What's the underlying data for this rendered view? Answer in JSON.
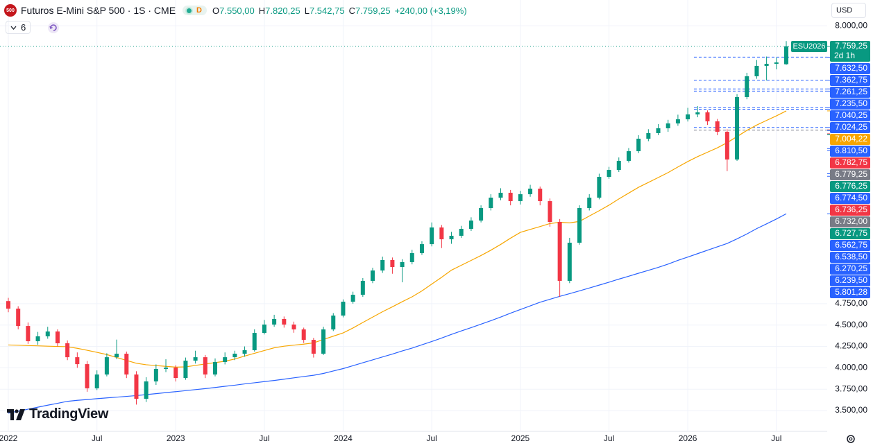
{
  "header": {
    "badge": "500",
    "title": "Futuros E-Mini S&P 500 · 1S · CME",
    "status": "D",
    "ohlc": [
      {
        "key": "O",
        "value": "7.550,00"
      },
      {
        "key": "H",
        "value": "7.820,25"
      },
      {
        "key": "L",
        "value": "7.542,75"
      },
      {
        "key": "C",
        "value": "7.759,25"
      }
    ],
    "change": "+240,00 (+3,19%)",
    "indicators": "6",
    "currency": "USD",
    "logo": "TradingView"
  },
  "chart_data": {
    "type": "candlestick",
    "up_color": "#089981",
    "down_color": "#f23645",
    "grid": true,
    "categories": [
      "2022",
      null,
      null,
      null,
      null,
      null,
      null,
      null,
      null,
      "Jul",
      null,
      null,
      null,
      null,
      null,
      null,
      null,
      "2023",
      null,
      null,
      null,
      null,
      null,
      null,
      null,
      null,
      "Jul",
      null,
      null,
      null,
      null,
      null,
      null,
      null,
      "2024",
      null,
      null,
      null,
      null,
      null,
      null,
      null,
      null,
      "Jul",
      null,
      null,
      null,
      null,
      null,
      null,
      null,
      null,
      "2025",
      null,
      null,
      null,
      null,
      null,
      null,
      null,
      null,
      "Jul",
      null,
      null,
      null,
      null,
      null,
      null,
      null,
      "2026",
      null,
      null,
      null,
      null,
      null,
      null,
      null,
      null,
      "Jul",
      null
    ],
    "ohlc": [
      [
        4780,
        4818,
        4650,
        4692
      ],
      [
        4692,
        4720,
        4450,
        4489
      ],
      [
        4489,
        4530,
        4280,
        4311
      ],
      [
        4311,
        4420,
        4270,
        4368
      ],
      [
        4368,
        4480,
        4340,
        4425
      ],
      [
        4425,
        4450,
        4250,
        4287
      ],
      [
        4287,
        4320,
        4090,
        4124
      ],
      [
        4124,
        4180,
        4000,
        4043
      ],
      [
        4043,
        4080,
        3720,
        3760
      ],
      [
        3760,
        3970,
        3740,
        3922
      ],
      [
        3922,
        4170,
        3900,
        4124
      ],
      [
        4124,
        4330,
        4100,
        4165
      ],
      [
        4165,
        4190,
        3880,
        3922
      ],
      [
        3922,
        3960,
        3570,
        3638
      ],
      [
        3638,
        3890,
        3600,
        3841
      ],
      [
        3841,
        4040,
        3800,
        3987
      ],
      [
        3987,
        4100,
        3950,
        4003
      ],
      [
        4003,
        4030,
        3840,
        3881
      ],
      [
        3881,
        4120,
        3860,
        4084
      ],
      [
        4084,
        4200,
        4050,
        4124
      ],
      [
        4124,
        4150,
        3880,
        3922
      ],
      [
        3922,
        4110,
        3900,
        4068
      ],
      [
        4068,
        4180,
        4040,
        4124
      ],
      [
        4124,
        4200,
        4090,
        4165
      ],
      [
        4165,
        4250,
        4130,
        4206
      ],
      [
        4206,
        4450,
        4190,
        4408
      ],
      [
        4408,
        4560,
        4390,
        4506
      ],
      [
        4506,
        4620,
        4480,
        4571
      ],
      [
        4571,
        4600,
        4470,
        4506
      ],
      [
        4506,
        4540,
        4410,
        4449
      ],
      [
        4449,
        4470,
        4290,
        4327
      ],
      [
        4327,
        4350,
        4120,
        4165
      ],
      [
        4165,
        4480,
        4150,
        4449
      ],
      [
        4449,
        4640,
        4430,
        4611
      ],
      [
        4611,
        4800,
        4590,
        4773
      ],
      [
        4773,
        4890,
        4750,
        4854
      ],
      [
        4854,
        5050,
        4830,
        5017
      ],
      [
        5017,
        5170,
        4990,
        5138
      ],
      [
        5138,
        5300,
        5110,
        5260
      ],
      [
        5260,
        5290,
        5100,
        5179
      ],
      [
        5179,
        5270,
        5000,
        5236
      ],
      [
        5236,
        5380,
        5210,
        5341
      ],
      [
        5341,
        5480,
        5320,
        5446
      ],
      [
        5446,
        5700,
        5420,
        5641
      ],
      [
        5641,
        5670,
        5400,
        5503
      ],
      [
        5503,
        5590,
        5450,
        5544
      ],
      [
        5544,
        5660,
        5520,
        5625
      ],
      [
        5625,
        5760,
        5600,
        5722
      ],
      [
        5722,
        5900,
        5700,
        5868
      ],
      [
        5868,
        6030,
        5840,
        5990
      ],
      [
        5990,
        6100,
        5960,
        6047
      ],
      [
        6047,
        6080,
        5900,
        5949
      ],
      [
        5949,
        6070,
        5910,
        6030
      ],
      [
        6030,
        6140,
        6000,
        6095
      ],
      [
        6095,
        6120,
        5900,
        5949
      ],
      [
        5949,
        5980,
        5650,
        5706
      ],
      [
        5706,
        5740,
        4830,
        5017
      ],
      [
        5017,
        5520,
        4990,
        5463
      ],
      [
        5463,
        5900,
        5440,
        5868
      ],
      [
        5868,
        6030,
        5840,
        5990
      ],
      [
        5990,
        6270,
        5970,
        6233
      ],
      [
        6233,
        6350,
        6210,
        6314
      ],
      [
        6314,
        6460,
        6290,
        6420
      ],
      [
        6420,
        6570,
        6400,
        6533
      ],
      [
        6533,
        6720,
        6510,
        6679
      ],
      [
        6679,
        6790,
        6650,
        6744
      ],
      [
        6744,
        6850,
        6720,
        6801
      ],
      [
        6801,
        6900,
        6760,
        6858
      ],
      [
        6858,
        6960,
        6830,
        6906
      ],
      [
        6906,
        7040,
        6880,
        6963
      ],
      [
        6963,
        7060,
        6930,
        6987
      ],
      [
        6987,
        7010,
        6840,
        6882
      ],
      [
        6882,
        6910,
        6720,
        6760
      ],
      [
        6760,
        6790,
        6300,
        6436
      ],
      [
        6436,
        7200,
        6420,
        7166
      ],
      [
        7166,
        7450,
        7140,
        7409
      ],
      [
        7409,
        7600,
        7380,
        7531
      ],
      [
        7531,
        7640,
        7360,
        7555
      ],
      [
        7555,
        7630,
        7490,
        7571
      ],
      [
        7550,
        7820.25,
        7542.75,
        7759.25
      ]
    ],
    "series": [
      {
        "color": "#f7a600",
        "values": [
          4267,
          4264,
          4260,
          4257,
          4253,
          4250,
          4247,
          4228,
          4205,
          4181,
          4155,
          4121,
          4087,
          4053,
          4036,
          4026,
          4017,
          4008,
          4011,
          4028,
          4045,
          4061,
          4077,
          4103,
          4137,
          4170,
          4202,
          4234,
          4253,
          4265,
          4277,
          4292,
          4331,
          4370,
          4408,
          4466,
          4530,
          4593,
          4656,
          4713,
          4773,
          4830,
          4899,
          4979,
          5058,
          5142,
          5199,
          5256,
          5313,
          5375,
          5443,
          5516,
          5584,
          5618,
          5652,
          5687,
          5702,
          5695,
          5712,
          5775,
          5837,
          5902,
          5975,
          6043,
          6111,
          6168,
          6225,
          6283,
          6349,
          6412,
          6470,
          6521,
          6572,
          6633,
          6704,
          6776,
          6839,
          6893,
          6946,
          7004.22
        ]
      },
      {
        "color": "#2962ff",
        "values": [
          3470,
          3493,
          3516,
          3540,
          3563,
          3585,
          3608,
          3620,
          3629,
          3639,
          3648,
          3657,
          3666,
          3675,
          3687,
          3698,
          3710,
          3721,
          3733,
          3745,
          3757,
          3770,
          3784,
          3797,
          3812,
          3825,
          3839,
          3852,
          3867,
          3883,
          3898,
          3913,
          3934,
          3963,
          3991,
          4025,
          4059,
          4093,
          4127,
          4161,
          4197,
          4231,
          4269,
          4308,
          4348,
          4391,
          4431,
          4470,
          4510,
          4551,
          4594,
          4639,
          4682,
          4724,
          4767,
          4801,
          4836,
          4867,
          4900,
          4933,
          4967,
          5001,
          5037,
          5071,
          5106,
          5140,
          5174,
          5213,
          5256,
          5295,
          5335,
          5375,
          5415,
          5454,
          5508,
          5565,
          5628,
          5683,
          5740,
          5801.28
        ]
      }
    ],
    "ylim": [
      3257,
      8301
    ],
    "yticks": [
      {
        "value": 3500,
        "label": "3.500,00"
      },
      {
        "value": 3750,
        "label": "3.750,00"
      },
      {
        "value": 4000,
        "label": "4.000,00"
      },
      {
        "value": 4250,
        "label": "4.250,00"
      },
      {
        "value": 4500,
        "label": "4.500,00"
      },
      {
        "value": 4750,
        "label": "4.750,00"
      },
      {
        "value": 8000,
        "label": "8.000,00"
      }
    ],
    "price_labels": [
      {
        "value": 7759.25,
        "label": "7.759,25",
        "color": "#089981",
        "tag": "ESU2026",
        "countdown": "2d 1h",
        "style": "dotted"
      },
      {
        "value": 7632.5,
        "label": "7.632,50",
        "color": "#2962ff",
        "style": "dashed"
      },
      {
        "value": 7362.75,
        "label": "7.362,75",
        "color": "#2962ff",
        "style": "dashed"
      },
      {
        "value": 7261.25,
        "label": "7.261,25",
        "color": "#2962ff",
        "style": "dashed"
      },
      {
        "value": 7235.5,
        "label": "7.235,50",
        "color": "#2962ff",
        "style": "dashed"
      },
      {
        "value": 7040.25,
        "label": "7.040,25",
        "color": "#2962ff",
        "style": "dashed"
      },
      {
        "value": 7024.25,
        "label": "7.024,25",
        "color": "#2962ff",
        "style": "dashed"
      },
      {
        "value": 7004.22,
        "label": "7.004,22",
        "color": "#f7a600"
      },
      {
        "value": 6810.5,
        "label": "6.810,50",
        "color": "#2962ff",
        "style": "dashed"
      },
      {
        "value": 6782.75,
        "label": "6.782,75",
        "color": "#f23645"
      },
      {
        "value": 6779.25,
        "label": "6.779,25",
        "color": "#787b86",
        "style": "dashed"
      },
      {
        "value": 6776.25,
        "label": "6.776,25",
        "color": "#089981"
      },
      {
        "value": 6774.5,
        "label": "6.774,50",
        "color": "#2962ff"
      },
      {
        "value": 6736.25,
        "label": "6.736,25",
        "color": "#f23645"
      },
      {
        "value": 6732,
        "label": "6.732,00",
        "color": "#787b86"
      },
      {
        "value": 6727.75,
        "label": "6.727,75",
        "color": "#089981"
      },
      {
        "value": 6562.75,
        "label": "6.562,75",
        "color": "#2962ff"
      },
      {
        "value": 6538.5,
        "label": "6.538,50",
        "color": "#2962ff"
      },
      {
        "value": 6270.25,
        "label": "6.270,25",
        "color": "#2962ff"
      },
      {
        "value": 6239.5,
        "label": "6.239,50",
        "color": "#2962ff"
      },
      {
        "value": 5801.28,
        "label": "5.801,28",
        "color": "#2962ff"
      }
    ]
  }
}
